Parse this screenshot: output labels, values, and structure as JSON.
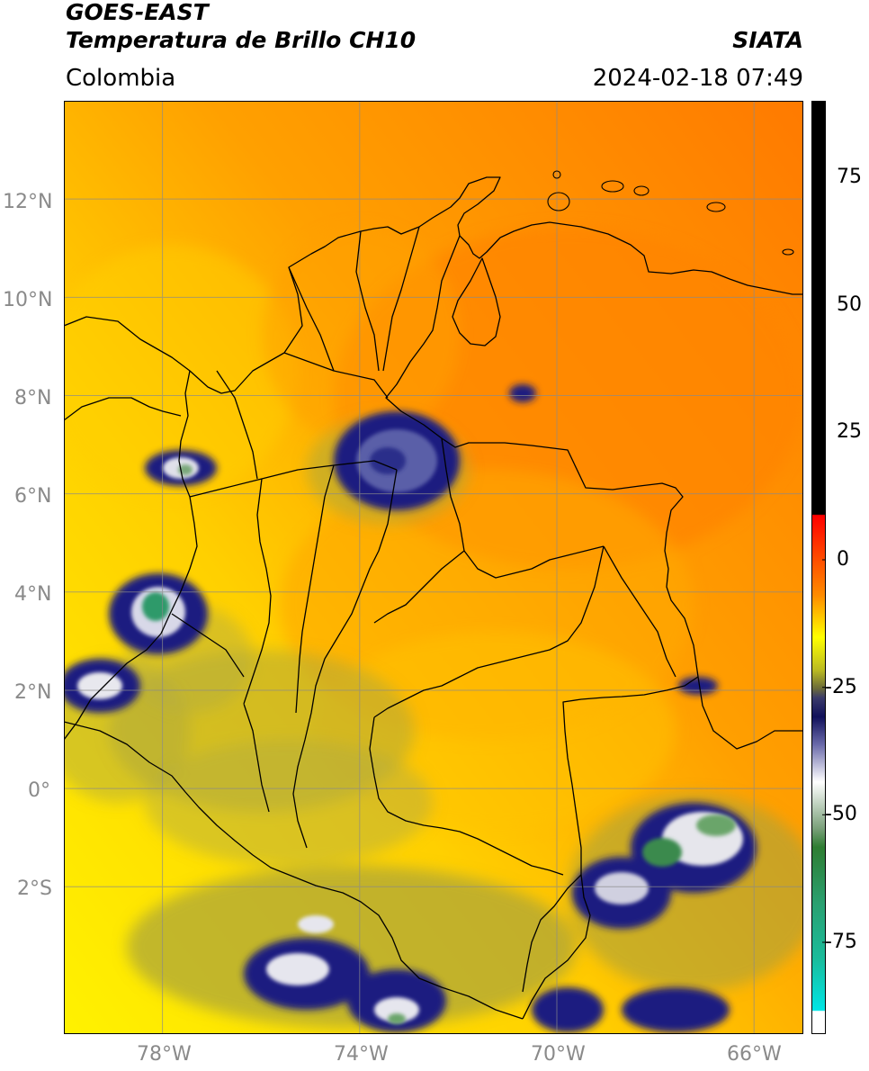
{
  "header": {
    "satellite": "GOES-EAST",
    "product": "Temperatura de Brillo CH10",
    "agency": "SIATA",
    "region": "Colombia",
    "datetime": "2024-02-18 07:49"
  },
  "map": {
    "lat_labels": [
      "12°N",
      "10°N",
      "8°N",
      "6°N",
      "4°N",
      "2°N",
      "0°",
      "2°S"
    ],
    "lon_labels": [
      "78°W",
      "74°W",
      "70°W",
      "66°W"
    ],
    "extent": {
      "lon_min": -80,
      "lon_max": -65,
      "lat_min": -5,
      "lat_max": 14
    },
    "colors": {
      "background_warm": "#ff8a00",
      "background_mid": "#ffd200",
      "background_cool": "#ffef00",
      "cloud_olive": "#a7a63a",
      "cloud_navy": "#141c7a",
      "cloud_white": "#f2f2f2",
      "cloud_green": "#3e9a5c"
    }
  },
  "colorbar": {
    "tick_labels": [
      "75",
      "50",
      "25",
      "0",
      "-25",
      "-50",
      "-75"
    ],
    "tick_values": [
      75,
      50,
      25,
      0,
      -25,
      -50,
      -75
    ],
    "range": [
      -93,
      90
    ],
    "colors": {
      "black": "#000000",
      "red": "#ff0000",
      "orange": "#ff8c00",
      "yellow": "#ffff00",
      "olive": "#7a7a2a",
      "navy": "#10105a",
      "white": "#ffffff",
      "green": "#2e7d32",
      "teal": "#1abc9c",
      "cyan": "#00e5e5"
    }
  }
}
